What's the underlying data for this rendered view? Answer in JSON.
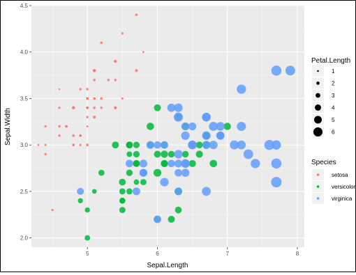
{
  "colors": {
    "panel": "#ebebeb",
    "grid_major": "#ffffff",
    "grid_minor": "#f5f5f5",
    "setosa": "#F8766D",
    "versicolor": "#00BA38",
    "virginica": "#619CFF"
  },
  "chart_data": {
    "type": "scatter",
    "xlabel": "Sepal.Length",
    "ylabel": "Sepal.Width",
    "xlim": [
      4.2,
      8.1
    ],
    "ylim": [
      1.9,
      4.5
    ],
    "xticks": [
      5,
      6,
      7,
      8
    ],
    "yticks": [
      2.0,
      2.5,
      3.0,
      3.5,
      4.0,
      4.5
    ],
    "xtick_labels": [
      "5",
      "6",
      "7",
      "8"
    ],
    "ytick_labels": [
      "2.0",
      "2.5",
      "3.0",
      "3.5",
      "4.0",
      "4.5"
    ],
    "grid": true,
    "size_legend": {
      "title": "Petal.Length",
      "values": [
        1,
        2,
        3,
        4,
        5,
        6
      ],
      "labels": [
        "1",
        "2",
        "3",
        "4",
        "5",
        "6"
      ]
    },
    "color_legend": {
      "title": "Species",
      "entries": [
        {
          "key": "setosa",
          "label": "setosa"
        },
        {
          "key": "versicolor",
          "label": "versicolor"
        },
        {
          "key": "virginica",
          "label": "virginica"
        }
      ]
    },
    "series": [
      {
        "key": "setosa",
        "points": [
          [
            5.1,
            3.5,
            1.4
          ],
          [
            4.9,
            3.0,
            1.4
          ],
          [
            4.7,
            3.2,
            1.3
          ],
          [
            4.6,
            3.1,
            1.5
          ],
          [
            5.0,
            3.6,
            1.4
          ],
          [
            5.4,
            3.9,
            1.7
          ],
          [
            4.6,
            3.4,
            1.4
          ],
          [
            5.0,
            3.4,
            1.5
          ],
          [
            4.4,
            2.9,
            1.4
          ],
          [
            4.9,
            3.1,
            1.5
          ],
          [
            5.4,
            3.7,
            1.5
          ],
          [
            4.8,
            3.4,
            1.6
          ],
          [
            4.8,
            3.0,
            1.4
          ],
          [
            4.3,
            3.0,
            1.1
          ],
          [
            5.8,
            4.0,
            1.2
          ],
          [
            5.7,
            4.4,
            1.5
          ],
          [
            5.4,
            3.9,
            1.3
          ],
          [
            5.1,
            3.5,
            1.4
          ],
          [
            5.7,
            3.8,
            1.7
          ],
          [
            5.1,
            3.8,
            1.5
          ],
          [
            5.4,
            3.4,
            1.7
          ],
          [
            5.1,
            3.7,
            1.5
          ],
          [
            4.6,
            3.6,
            1.0
          ],
          [
            5.1,
            3.3,
            1.7
          ],
          [
            4.8,
            3.4,
            1.9
          ],
          [
            5.0,
            3.0,
            1.6
          ],
          [
            5.0,
            3.4,
            1.6
          ],
          [
            5.2,
            3.5,
            1.5
          ],
          [
            5.2,
            3.4,
            1.4
          ],
          [
            4.7,
            3.2,
            1.6
          ],
          [
            4.8,
            3.1,
            1.6
          ],
          [
            5.4,
            3.4,
            1.5
          ],
          [
            5.2,
            4.1,
            1.5
          ],
          [
            5.5,
            4.2,
            1.4
          ],
          [
            4.9,
            3.1,
            1.5
          ],
          [
            5.0,
            3.2,
            1.2
          ],
          [
            5.5,
            3.5,
            1.3
          ],
          [
            4.9,
            3.6,
            1.4
          ],
          [
            4.4,
            3.0,
            1.3
          ],
          [
            5.1,
            3.4,
            1.5
          ],
          [
            5.0,
            3.5,
            1.3
          ],
          [
            4.5,
            2.3,
            1.3
          ],
          [
            4.4,
            3.2,
            1.3
          ],
          [
            5.0,
            3.5,
            1.6
          ],
          [
            5.1,
            3.8,
            1.9
          ],
          [
            4.8,
            3.0,
            1.4
          ],
          [
            5.1,
            3.8,
            1.6
          ],
          [
            4.6,
            3.2,
            1.4
          ],
          [
            5.3,
            3.7,
            1.5
          ],
          [
            5.0,
            3.3,
            1.4
          ]
        ]
      },
      {
        "key": "versicolor",
        "points": [
          [
            7.0,
            3.2,
            4.7
          ],
          [
            6.4,
            3.2,
            4.5
          ],
          [
            6.9,
            3.1,
            4.9
          ],
          [
            5.5,
            2.3,
            4.0
          ],
          [
            6.5,
            2.8,
            4.6
          ],
          [
            5.7,
            2.8,
            4.5
          ],
          [
            6.3,
            3.3,
            4.7
          ],
          [
            4.9,
            2.4,
            3.3
          ],
          [
            6.6,
            2.9,
            4.6
          ],
          [
            5.2,
            2.7,
            3.9
          ],
          [
            5.0,
            2.0,
            3.5
          ],
          [
            5.9,
            3.0,
            4.2
          ],
          [
            6.0,
            2.2,
            4.0
          ],
          [
            6.1,
            2.9,
            4.7
          ],
          [
            5.6,
            2.9,
            3.6
          ],
          [
            6.7,
            3.1,
            4.4
          ],
          [
            5.6,
            3.0,
            4.5
          ],
          [
            5.8,
            2.7,
            4.1
          ],
          [
            6.2,
            2.2,
            4.5
          ],
          [
            5.6,
            2.5,
            3.9
          ],
          [
            5.9,
            3.2,
            4.8
          ],
          [
            6.1,
            2.8,
            4.0
          ],
          [
            6.3,
            2.5,
            4.9
          ],
          [
            6.1,
            2.8,
            4.7
          ],
          [
            6.4,
            2.9,
            4.3
          ],
          [
            6.6,
            3.0,
            4.4
          ],
          [
            6.8,
            2.8,
            4.8
          ],
          [
            6.7,
            3.0,
            5.0
          ],
          [
            6.0,
            2.9,
            4.5
          ],
          [
            5.7,
            2.6,
            3.5
          ],
          [
            5.5,
            2.4,
            3.8
          ],
          [
            5.5,
            2.4,
            3.7
          ],
          [
            5.8,
            2.7,
            3.9
          ],
          [
            6.0,
            2.7,
            5.1
          ],
          [
            5.4,
            3.0,
            4.5
          ],
          [
            6.0,
            3.4,
            4.5
          ],
          [
            6.7,
            3.1,
            4.7
          ],
          [
            6.3,
            2.3,
            4.4
          ],
          [
            5.6,
            3.0,
            4.1
          ],
          [
            5.5,
            2.5,
            4.0
          ],
          [
            5.5,
            2.6,
            4.4
          ],
          [
            6.1,
            3.0,
            4.6
          ],
          [
            5.8,
            2.6,
            4.0
          ],
          [
            5.0,
            2.3,
            3.3
          ],
          [
            5.6,
            2.7,
            4.2
          ],
          [
            5.7,
            3.0,
            4.2
          ],
          [
            5.7,
            2.9,
            4.2
          ],
          [
            6.2,
            2.9,
            4.3
          ],
          [
            5.1,
            2.5,
            3.0
          ],
          [
            5.7,
            2.8,
            4.1
          ]
        ]
      },
      {
        "key": "virginica",
        "points": [
          [
            6.3,
            3.3,
            6.0
          ],
          [
            5.8,
            2.7,
            5.1
          ],
          [
            7.1,
            3.0,
            5.9
          ],
          [
            6.3,
            2.9,
            5.6
          ],
          [
            6.5,
            3.0,
            5.8
          ],
          [
            7.6,
            3.0,
            6.6
          ],
          [
            4.9,
            2.5,
            4.5
          ],
          [
            7.3,
            2.9,
            6.3
          ],
          [
            6.7,
            2.5,
            5.8
          ],
          [
            7.2,
            3.6,
            6.1
          ],
          [
            6.5,
            3.2,
            5.1
          ],
          [
            6.4,
            2.7,
            5.3
          ],
          [
            6.8,
            3.0,
            5.5
          ],
          [
            5.7,
            2.5,
            5.0
          ],
          [
            5.8,
            2.8,
            5.1
          ],
          [
            6.4,
            3.2,
            5.3
          ],
          [
            6.5,
            3.0,
            5.5
          ],
          [
            7.7,
            3.8,
            6.7
          ],
          [
            7.7,
            2.6,
            6.9
          ],
          [
            6.0,
            2.2,
            5.0
          ],
          [
            6.9,
            3.2,
            5.7
          ],
          [
            5.6,
            2.8,
            4.9
          ],
          [
            7.7,
            2.8,
            6.7
          ],
          [
            6.3,
            2.7,
            4.9
          ],
          [
            6.7,
            3.3,
            5.7
          ],
          [
            7.2,
            3.2,
            6.0
          ],
          [
            6.2,
            2.8,
            4.8
          ],
          [
            6.1,
            3.0,
            4.9
          ],
          [
            6.4,
            2.8,
            5.6
          ],
          [
            7.2,
            3.0,
            5.8
          ],
          [
            7.4,
            2.8,
            6.1
          ],
          [
            7.9,
            3.8,
            6.4
          ],
          [
            6.4,
            2.8,
            5.6
          ],
          [
            6.3,
            2.8,
            5.1
          ],
          [
            6.1,
            2.6,
            5.6
          ],
          [
            7.7,
            3.0,
            6.1
          ],
          [
            6.3,
            3.4,
            5.6
          ],
          [
            6.4,
            3.1,
            5.5
          ],
          [
            6.0,
            3.0,
            4.8
          ],
          [
            6.9,
            3.1,
            5.4
          ],
          [
            6.7,
            3.1,
            5.6
          ],
          [
            6.9,
            3.1,
            5.1
          ],
          [
            5.8,
            2.7,
            5.1
          ],
          [
            6.8,
            3.2,
            5.9
          ],
          [
            6.7,
            3.3,
            5.7
          ],
          [
            6.7,
            3.0,
            5.2
          ],
          [
            6.3,
            2.5,
            5.0
          ],
          [
            6.5,
            3.0,
            5.2
          ],
          [
            6.2,
            3.4,
            5.4
          ],
          [
            5.9,
            3.0,
            5.1
          ]
        ]
      }
    ]
  }
}
